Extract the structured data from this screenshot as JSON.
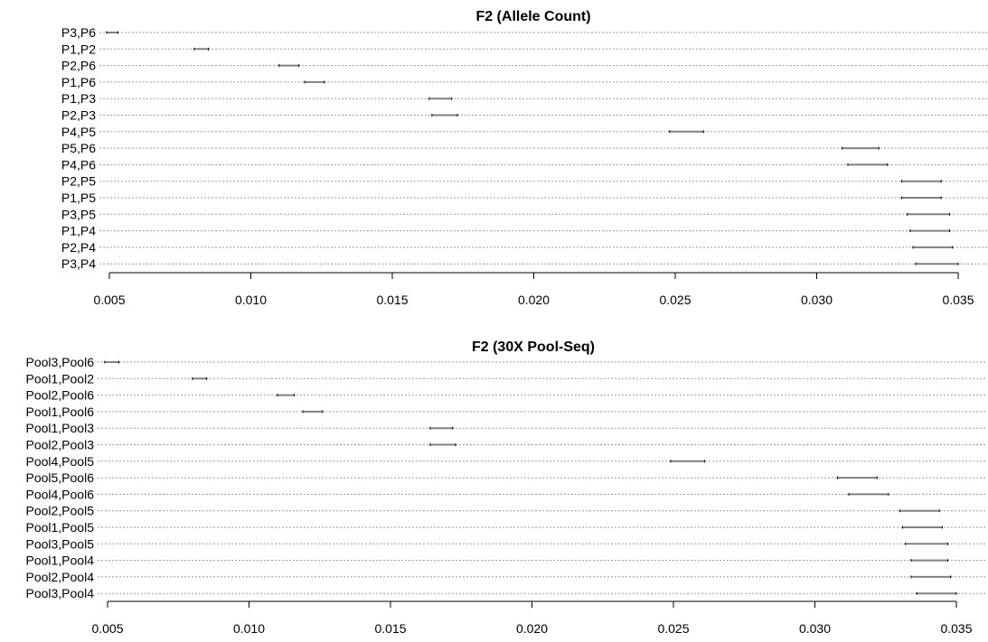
{
  "chart_data": [
    {
      "type": "interval",
      "title": "F2 (Allele Count)",
      "xlabel": "",
      "ylabel": "",
      "xlim": [
        0.005,
        0.035
      ],
      "xticks": [
        "0.005",
        "0.010",
        "0.015",
        "0.020",
        "0.025",
        "0.030",
        "0.035"
      ],
      "grid": true,
      "intervals": [
        {
          "label": "P3,P6",
          "low": 0.0049,
          "high": 0.0053
        },
        {
          "label": "P1,P2",
          "low": 0.008,
          "high": 0.0085
        },
        {
          "label": "P2,P6",
          "low": 0.011,
          "high": 0.0117
        },
        {
          "label": "P1,P6",
          "low": 0.0119,
          "high": 0.0126
        },
        {
          "label": "P1,P3",
          "low": 0.0163,
          "high": 0.0171
        },
        {
          "label": "P2,P3",
          "low": 0.0164,
          "high": 0.0173
        },
        {
          "label": "P4,P5",
          "low": 0.0248,
          "high": 0.026
        },
        {
          "label": "P5,P6",
          "low": 0.0309,
          "high": 0.0322
        },
        {
          "label": "P4,P6",
          "low": 0.0311,
          "high": 0.0325
        },
        {
          "label": "P2,P5",
          "low": 0.033,
          "high": 0.0344
        },
        {
          "label": "P1,P5",
          "low": 0.033,
          "high": 0.0344
        },
        {
          "label": "P3,P5",
          "low": 0.0332,
          "high": 0.0347
        },
        {
          "label": "P1,P4",
          "low": 0.0333,
          "high": 0.0347
        },
        {
          "label": "P2,P4",
          "low": 0.0334,
          "high": 0.0348
        },
        {
          "label": "P3,P4",
          "low": 0.0335,
          "high": 0.035
        }
      ]
    },
    {
      "type": "interval",
      "title": "F2 (30X Pool-Seq)",
      "xlabel": "",
      "ylabel": "",
      "xlim": [
        0.005,
        0.035
      ],
      "xticks": [
        "0.005",
        "0.010",
        "0.015",
        "0.020",
        "0.025",
        "0.030",
        "0.035"
      ],
      "grid": true,
      "intervals": [
        {
          "label": "Pool3,Pool6",
          "low": 0.0049,
          "high": 0.0054
        },
        {
          "label": "Pool1,Pool2",
          "low": 0.008,
          "high": 0.0085
        },
        {
          "label": "Pool2,Pool6",
          "low": 0.011,
          "high": 0.0116
        },
        {
          "label": "Pool1,Pool6",
          "low": 0.0119,
          "high": 0.0126
        },
        {
          "label": "Pool1,Pool3",
          "low": 0.0164,
          "high": 0.0172
        },
        {
          "label": "Pool2,Pool3",
          "low": 0.0164,
          "high": 0.0173
        },
        {
          "label": "Pool4,Pool5",
          "low": 0.0249,
          "high": 0.0261
        },
        {
          "label": "Pool5,Pool6",
          "low": 0.0308,
          "high": 0.0322
        },
        {
          "label": "Pool4,Pool6",
          "low": 0.0312,
          "high": 0.0326
        },
        {
          "label": "Pool2,Pool5",
          "low": 0.033,
          "high": 0.0344
        },
        {
          "label": "Pool1,Pool5",
          "low": 0.0331,
          "high": 0.0345
        },
        {
          "label": "Pool3,Pool5",
          "low": 0.0332,
          "high": 0.0347
        },
        {
          "label": "Pool1,Pool4",
          "low": 0.0334,
          "high": 0.0347
        },
        {
          "label": "Pool2,Pool4",
          "low": 0.0334,
          "high": 0.0348
        },
        {
          "label": "Pool3,Pool4",
          "low": 0.0336,
          "high": 0.035
        }
      ]
    }
  ],
  "colors": {
    "interval_line": "#808080",
    "interval_cap": "#000000",
    "grid": "#9a9a9a",
    "axis": "#000000"
  }
}
